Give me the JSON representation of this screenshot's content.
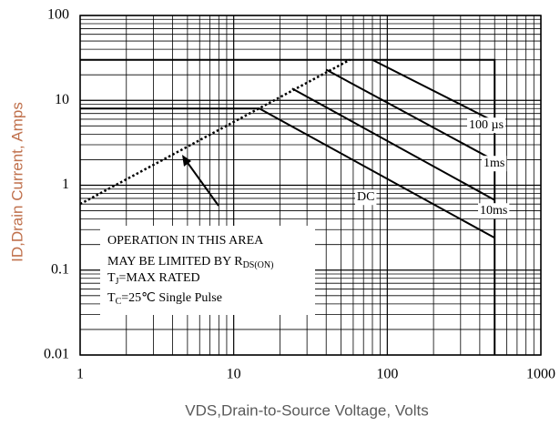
{
  "chart_data": {
    "type": "line",
    "xlabel": "VDS,Drain-to-Source Voltage, Volts",
    "ylabel": "ID,Drain Current, Amps",
    "xscale": "log",
    "yscale": "log",
    "xlim": [
      1,
      1000
    ],
    "ylim": [
      0.01,
      100
    ],
    "xticks": [
      1,
      10,
      100,
      1000
    ],
    "yticks": [
      0.01,
      0.1,
      1,
      10,
      100
    ],
    "grid": true,
    "minor_grid": true,
    "series": [
      {
        "color": "#000000",
        "x": [
          1,
          500,
          500
        ],
        "values": [
          30,
          30,
          0.01
        ]
      },
      {
        "color": "#000000",
        "style": "dotted",
        "x": [
          1,
          57
        ],
        "values": [
          0.6,
          30
        ]
      },
      {
        "name": "DC",
        "color": "#000000",
        "x": [
          1,
          14.7,
          500
        ],
        "values": [
          8,
          8,
          0.24
        ]
      },
      {
        "name": "10ms",
        "color": "#000000",
        "x": [
          24,
          500
        ],
        "values": [
          13.8,
          0.67
        ]
      },
      {
        "name": "1ms",
        "color": "#000000",
        "x": [
          40,
          500
        ],
        "values": [
          23,
          1.95
        ]
      },
      {
        "name": "100 µs",
        "color": "#000000",
        "x": [
          80,
          500
        ],
        "values": [
          30,
          5.6
        ]
      }
    ],
    "annotations": [
      [
        {
          "text": "OPERATION IN THIS AREA"
        }
      ],
      [
        {
          "text": "MAY BE LIMITED BY R"
        },
        {
          "text": "DS(ON)",
          "sub": true
        }
      ],
      [
        {
          "text": "T"
        },
        {
          "text": "J",
          "sub": true
        },
        {
          "text": "=MAX RATED"
        }
      ],
      [
        {
          "text": "T"
        },
        {
          "text": "C",
          "sub": true
        },
        {
          "text": "=25℃  Single Pulse"
        }
      ]
    ]
  }
}
